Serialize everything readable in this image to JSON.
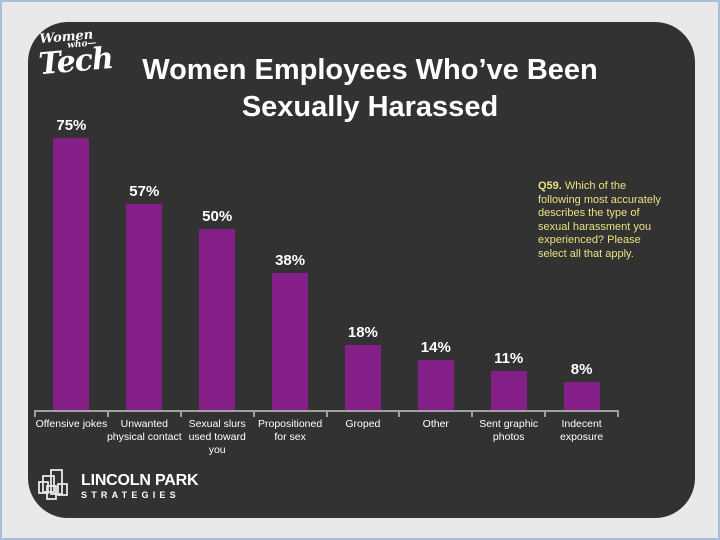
{
  "colors": {
    "page_bg": "#e9e9e9",
    "page_border": "#a6bedb",
    "card_bg": "#323233",
    "bar": "#831f87",
    "axis": "#a0a0a0",
    "text": "#ffffff",
    "annotation": "#e9e180"
  },
  "logo": {
    "word1": "Women",
    "word2": "who—",
    "word3": "Tech"
  },
  "title": {
    "line1": "Women Employees Who’ve Been",
    "line2": "Sexually Harassed"
  },
  "annotation": {
    "prefix": "Q59.",
    "text": "Which of the following most accurately describes the type of sexual harassment you experienced? Please select all that apply."
  },
  "footer_logo": {
    "icon": "overlapping-rectangles",
    "line1": "LINCOLN PARK",
    "line2": "STRATEGIES"
  },
  "chart_data": {
    "type": "bar",
    "title": "Women Employees Who’ve Been Sexually Harassed",
    "categories": [
      "Offensive jokes",
      "Unwanted physical contact",
      "Sexual slurs used toward you",
      "Propositioned for sex",
      "Groped",
      "Other",
      "Sent graphic photos",
      "Indecent exposure"
    ],
    "category_lines": [
      [
        "Offensive jokes"
      ],
      [
        "Unwanted",
        "physical contact"
      ],
      [
        "Sexual slurs",
        "used toward",
        "you"
      ],
      [
        "Propositioned",
        "for sex"
      ],
      [
        "Groped"
      ],
      [
        "Other"
      ],
      [
        "Sent graphic",
        "photos"
      ],
      [
        "Indecent",
        "exposure"
      ]
    ],
    "values": [
      75,
      57,
      50,
      38,
      18,
      14,
      11,
      8
    ],
    "unit": "%",
    "xlabel": "",
    "ylabel": "",
    "ylim": [
      0,
      100
    ],
    "grid": false,
    "legend": false,
    "bar_color": "#831f87",
    "value_labels_shown": true
  }
}
